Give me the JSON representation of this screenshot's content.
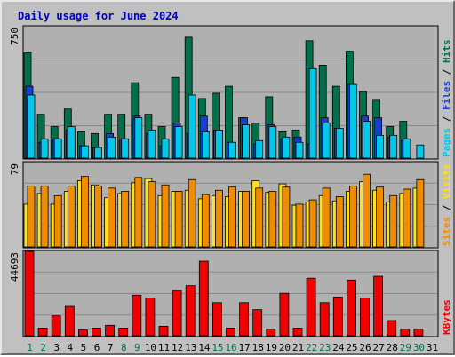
{
  "title": "Daily usage for June 2024",
  "colors": {
    "title": "#0000c0",
    "background": "#c0c0c0",
    "plot_bg": "#b0b0b0",
    "gridline": "#888888",
    "hits": "#006f4a",
    "files": "#1a3fd0",
    "pages": "#00c8e8",
    "visits": "#f08c00",
    "sites": "#ffe020",
    "kbytes": "#f00000",
    "weekend_label": "#006f4a",
    "weekday_label": "#000000"
  },
  "y_max_labels": {
    "top": "750",
    "middle": "79",
    "bottom": "44693"
  },
  "right_labels": {
    "top": [
      {
        "text": "Pages",
        "color": "#00c8e8"
      },
      {
        "text": " / ",
        "color": "#000000"
      },
      {
        "text": "Files",
        "color": "#1a3fd0"
      },
      {
        "text": " / ",
        "color": "#000000"
      },
      {
        "text": "Hits",
        "color": "#006f4a"
      }
    ],
    "middle": [
      {
        "text": "Sites",
        "color": "#f08c00"
      },
      {
        "text": " / ",
        "color": "#000000"
      },
      {
        "text": "Visits",
        "color": "#ffe020"
      }
    ],
    "bottom": [
      {
        "text": "KBytes",
        "color": "#f00000"
      }
    ]
  },
  "chart_data": {
    "type": "bar",
    "title": "Daily usage for June 2024",
    "categories": [
      "1",
      "2",
      "3",
      "4",
      "5",
      "6",
      "7",
      "8",
      "9",
      "10",
      "11",
      "12",
      "13",
      "14",
      "15",
      "16",
      "17",
      "18",
      "19",
      "20",
      "21",
      "22",
      "23",
      "24",
      "25",
      "26",
      "27",
      "28",
      "29",
      "30",
      "31"
    ],
    "weekend_days": [
      "1",
      "2",
      "8",
      "9",
      "15",
      "16",
      "22",
      "23",
      "29",
      "30"
    ],
    "panels": [
      {
        "name": "hits_files_pages",
        "ymax": 750,
        "series": [
          {
            "name": "Hits",
            "values": [
              600,
              250,
              180,
              280,
              150,
              140,
              250,
              250,
              430,
              250,
              180,
              460,
              690,
              340,
              370,
              410,
              230,
              200,
              350,
              150,
              160,
              670,
              530,
              410,
              610,
              380,
              330,
              180,
              210,
              0,
              0
            ]
          },
          {
            "name": "Files",
            "values": [
              410,
              90,
              110,
              160,
              70,
              60,
              140,
              110,
              240,
              140,
              70,
              200,
              140,
              240,
              160,
              90,
              230,
              80,
              190,
              110,
              120,
              80,
              230,
              170,
              420,
              240,
              230,
              120,
              100,
              0,
              0
            ]
          },
          {
            "name": "Pages",
            "values": [
              360,
              110,
              110,
              180,
              70,
              60,
              120,
              110,
              230,
              160,
              110,
              180,
              360,
              150,
              160,
              90,
              190,
              100,
              180,
              120,
              90,
              510,
              200,
              170,
              420,
              210,
              130,
              130,
              110,
              75,
              0
            ]
          }
        ]
      },
      {
        "name": "visits_sites",
        "ymax": 79,
        "series": [
          {
            "name": "Visits",
            "values": [
              40,
              50,
              40,
              52,
              62,
              58,
              46,
              50,
              60,
              64,
              48,
              52,
              53,
              45,
              48,
              47,
              52,
              62,
              51,
              59,
              39,
              42,
              48,
              43,
              52,
              61,
              53,
              42,
              50,
              55,
              0
            ]
          },
          {
            "name": "Sites",
            "values": [
              57,
              57,
              48,
              57,
              66,
              57,
              55,
              52,
              65,
              61,
              58,
              52,
              63,
              49,
              53,
              56,
              52,
              55,
              52,
              56,
              40,
              44,
              55,
              47,
              57,
              68,
              56,
              48,
              54,
              63,
              0
            ]
          }
        ]
      },
      {
        "name": "kbytes",
        "ymax": 44693,
        "series": [
          {
            "name": "KBytes",
            "values": [
              44693,
              4000,
              10500,
              15500,
              3000,
              4000,
              5500,
              4000,
              21500,
              20000,
              5000,
              24000,
              26500,
              39500,
              17500,
              4000,
              17500,
              13800,
              3500,
              22500,
              4000,
              30500,
              17500,
              20500,
              29500,
              20000,
              31500,
              8000,
              3500,
              3500,
              0
            ]
          }
        ]
      }
    ]
  }
}
